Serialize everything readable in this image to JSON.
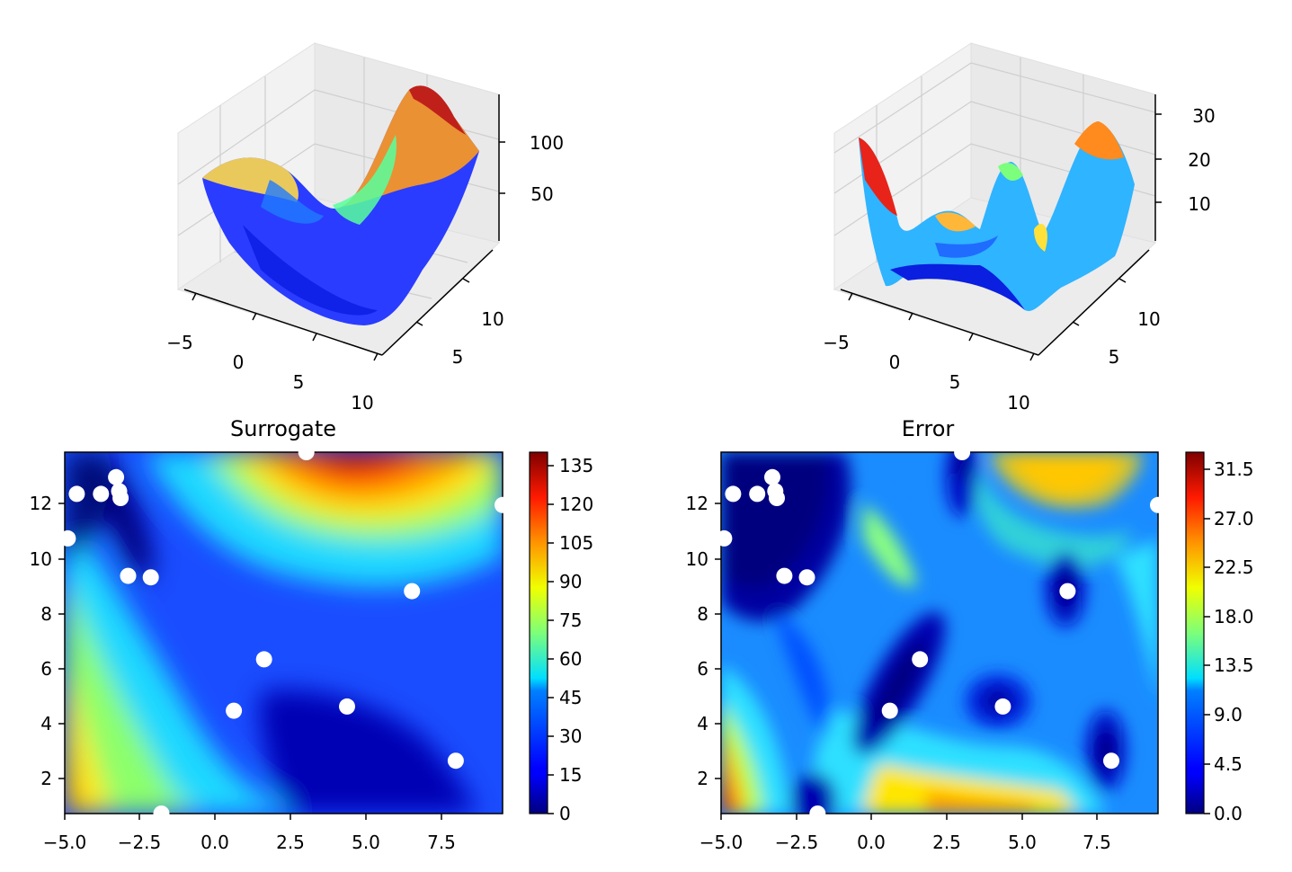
{
  "chart_data": [
    {
      "type": "surface3d",
      "x_ticks": [
        "−5",
        "0",
        "5",
        "10"
      ],
      "y_ticks": [
        "5",
        "10"
      ],
      "z_ticks": [
        "50",
        "100"
      ],
      "colormap": "jet",
      "grid": true
    },
    {
      "type": "surface3d",
      "x_ticks": [
        "−5",
        "0",
        "5",
        "10"
      ],
      "y_ticks": [
        "5",
        "10"
      ],
      "z_ticks": [
        "10",
        "20",
        "30"
      ],
      "colormap": "jet",
      "grid": true
    },
    {
      "type": "contour",
      "title": "Surrogate",
      "xlim": [
        -5,
        9.5
      ],
      "ylim": [
        0.8,
        13.8
      ],
      "x_ticks": [
        "−5.0",
        "−2.5",
        "0.0",
        "2.5",
        "5.0",
        "7.5"
      ],
      "y_ticks": [
        "2",
        "4",
        "6",
        "8",
        "10",
        "12"
      ],
      "colorbar_ticks": [
        "0",
        "15",
        "30",
        "45",
        "60",
        "75",
        "90",
        "105",
        "120",
        "135"
      ],
      "colorbar_range": [
        0,
        140
      ],
      "colormap": "jet"
    },
    {
      "type": "contour",
      "title": "Error",
      "xlim": [
        -5,
        9.5
      ],
      "ylim": [
        0.8,
        13.8
      ],
      "x_ticks": [
        "−5.0",
        "−2.5",
        "0.0",
        "2.5",
        "5.0",
        "7.5"
      ],
      "y_ticks": [
        "2",
        "4",
        "6",
        "8",
        "10",
        "12"
      ],
      "colorbar_ticks": [
        "0.0",
        "4.5",
        "9.0",
        "13.5",
        "18.0",
        "22.5",
        "27.0",
        "31.5"
      ],
      "colorbar_range": [
        0,
        33
      ],
      "colormap": "jet"
    }
  ],
  "sample_points": [
    {
      "x": -3.3,
      "y": 12.9
    },
    {
      "x": -4.6,
      "y": 12.3
    },
    {
      "x": -3.8,
      "y": 12.3
    },
    {
      "x": -3.2,
      "y": 12.4
    },
    {
      "x": -3.15,
      "y": 12.15
    },
    {
      "x": -4.9,
      "y": 10.7
    },
    {
      "x": -2.9,
      "y": 9.35
    },
    {
      "x": -2.15,
      "y": 9.3
    },
    {
      "x": 6.5,
      "y": 8.8
    },
    {
      "x": 1.6,
      "y": 6.35
    },
    {
      "x": 0.6,
      "y": 4.5
    },
    {
      "x": 4.35,
      "y": 4.65
    },
    {
      "x": 7.95,
      "y": 2.7
    },
    {
      "x": -1.8,
      "y": 0.8
    },
    {
      "x": 3.0,
      "y": 13.8
    },
    {
      "x": 9.5,
      "y": 11.9
    }
  ]
}
